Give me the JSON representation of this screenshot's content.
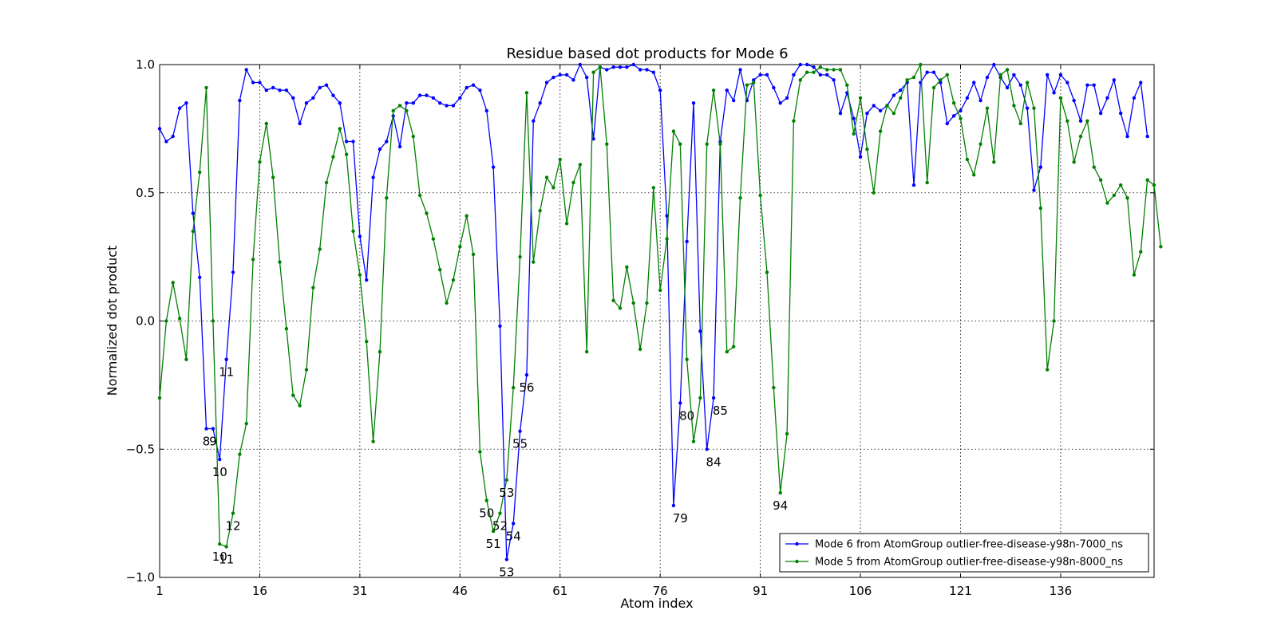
{
  "chart_data": {
    "type": "line",
    "title": "Residue based dot products for Mode 6",
    "xlabel": "Atom index",
    "ylabel": "Normalized dot product",
    "xlim": [
      1,
      150
    ],
    "ylim": [
      -1.0,
      1.0
    ],
    "xticks": [
      "1",
      "16",
      "31",
      "46",
      "61",
      "76",
      "91",
      "106",
      "121",
      "136"
    ],
    "xtick_values": [
      1,
      16,
      31,
      46,
      61,
      76,
      91,
      106,
      121,
      136
    ],
    "yticks": [
      "1.0",
      "0.5",
      "0.0",
      "−0.5",
      "−1.0"
    ],
    "ytick_values": [
      1.0,
      0.5,
      0.0,
      -0.5,
      -1.0
    ],
    "grid": true,
    "legend_position": "bottom-right",
    "series": [
      {
        "name": "Mode 6 from AtomGroup outlier-free-disease-y98n-7000_ns",
        "color": "#0000ff",
        "values": [
          0.75,
          0.7,
          0.72,
          0.83,
          0.85,
          0.42,
          0.17,
          -0.42,
          -0.42,
          -0.54,
          -0.15,
          0.19,
          0.86,
          0.98,
          0.93,
          0.93,
          0.9,
          0.91,
          0.9,
          0.9,
          0.87,
          0.77,
          0.85,
          0.87,
          0.91,
          0.92,
          0.88,
          0.85,
          0.7,
          0.7,
          0.33,
          0.16,
          0.56,
          0.67,
          0.7,
          0.8,
          0.68,
          0.85,
          0.85,
          0.88,
          0.88,
          0.87,
          0.85,
          0.84,
          0.84,
          0.87,
          0.91,
          0.92,
          0.9,
          0.82,
          0.6,
          -0.02,
          -0.93,
          -0.79,
          -0.43,
          -0.21,
          0.78,
          0.85,
          0.93,
          0.95,
          0.96,
          0.96,
          0.94,
          1.0,
          0.95,
          0.71,
          0.99,
          0.98,
          0.99,
          0.99,
          0.99,
          1.0,
          0.98,
          0.98,
          0.97,
          0.9,
          0.41,
          -0.72,
          -0.32,
          0.31,
          0.85,
          -0.04,
          -0.5,
          -0.3,
          0.7,
          0.9,
          0.86,
          0.98,
          0.86,
          0.94,
          0.96,
          0.96,
          0.91,
          0.85,
          0.87,
          0.96,
          1.0,
          1.0,
          0.99,
          0.96,
          0.96,
          0.94,
          0.81,
          0.89,
          0.79,
          0.64,
          0.81,
          0.84,
          0.82,
          0.84,
          0.88,
          0.9,
          0.93,
          0.53,
          0.93,
          0.97,
          0.97,
          0.93,
          0.77,
          0.8,
          0.82,
          0.87,
          0.93,
          0.86,
          0.95,
          1.0,
          0.95,
          0.91,
          0.96,
          0.92,
          0.83,
          0.51,
          0.6,
          0.96,
          0.89,
          0.96,
          0.93,
          0.86,
          0.78,
          0.92,
          0.92,
          0.81,
          0.87,
          0.94,
          0.81,
          0.72,
          0.87,
          0.93,
          0.72
        ]
      },
      {
        "name": "Mode 5 from AtomGroup outlier-free-disease-y98n-8000_ns",
        "color": "#008000",
        "values": [
          -0.3,
          0.0,
          0.15,
          0.01,
          -0.15,
          0.35,
          0.58,
          0.91,
          0.0,
          -0.87,
          -0.88,
          -0.75,
          -0.52,
          -0.4,
          0.24,
          0.62,
          0.77,
          0.56,
          0.23,
          -0.03,
          -0.29,
          -0.33,
          -0.19,
          0.13,
          0.28,
          0.54,
          0.64,
          0.75,
          0.65,
          0.35,
          0.18,
          -0.08,
          -0.47,
          -0.12,
          0.48,
          0.82,
          0.84,
          0.82,
          0.72,
          0.49,
          0.42,
          0.32,
          0.2,
          0.07,
          0.16,
          0.29,
          0.41,
          0.26,
          -0.51,
          -0.7,
          -0.82,
          -0.75,
          -0.62,
          -0.26,
          0.25,
          0.89,
          0.23,
          0.43,
          0.56,
          0.52,
          0.63,
          0.38,
          0.54,
          0.61,
          -0.12,
          0.97,
          0.99,
          0.69,
          0.08,
          0.05,
          0.21,
          0.07,
          -0.11,
          0.07,
          0.52,
          0.12,
          0.32,
          0.74,
          0.69,
          -0.15,
          -0.47,
          -0.3,
          0.69,
          0.9,
          0.69,
          -0.12,
          -0.1,
          0.48,
          0.92,
          0.93,
          0.49,
          0.19,
          -0.26,
          -0.67,
          -0.44,
          0.78,
          0.94,
          0.97,
          0.97,
          0.99,
          0.98,
          0.98,
          0.98,
          0.92,
          0.73,
          0.87,
          0.67,
          0.5,
          0.74,
          0.84,
          0.81,
          0.87,
          0.94,
          0.95,
          1.0,
          0.54,
          0.91,
          0.94,
          0.96,
          0.85,
          0.79,
          0.63,
          0.57,
          0.69,
          0.83,
          0.62,
          0.96,
          0.98,
          0.84,
          0.77,
          0.93,
          0.83,
          0.44,
          -0.19,
          0.0,
          0.87,
          0.78,
          0.62,
          0.72,
          0.78,
          0.6,
          0.55,
          0.46,
          0.49,
          0.53,
          0.48,
          0.18,
          0.27,
          0.55,
          0.53,
          0.29
        ]
      }
    ],
    "annotations": [
      {
        "text": "8",
        "x": 8,
        "y": -0.42
      },
      {
        "text": "9",
        "x": 9,
        "y": -0.42
      },
      {
        "text": "10",
        "x": 10,
        "y": -0.54
      },
      {
        "text": "11",
        "x": 11,
        "y": -0.15
      },
      {
        "text": "53",
        "x": 53,
        "y": -0.93
      },
      {
        "text": "54",
        "x": 54,
        "y": -0.79
      },
      {
        "text": "55",
        "x": 55,
        "y": -0.43
      },
      {
        "text": "56",
        "x": 56,
        "y": -0.21
      },
      {
        "text": "79",
        "x": 79,
        "y": -0.72
      },
      {
        "text": "80",
        "x": 80,
        "y": -0.32
      },
      {
        "text": "84",
        "x": 84,
        "y": -0.5
      },
      {
        "text": "85",
        "x": 85,
        "y": -0.3
      },
      {
        "text": "10",
        "x": 10,
        "y": -0.87
      },
      {
        "text": "11",
        "x": 11,
        "y": -0.88
      },
      {
        "text": "12",
        "x": 12,
        "y": -0.75
      },
      {
        "text": "50",
        "x": 50,
        "y": -0.7
      },
      {
        "text": "51",
        "x": 51,
        "y": -0.82
      },
      {
        "text": "52",
        "x": 52,
        "y": -0.75
      },
      {
        "text": "53",
        "x": 53,
        "y": -0.62
      },
      {
        "text": "94",
        "x": 94,
        "y": -0.67
      }
    ]
  }
}
